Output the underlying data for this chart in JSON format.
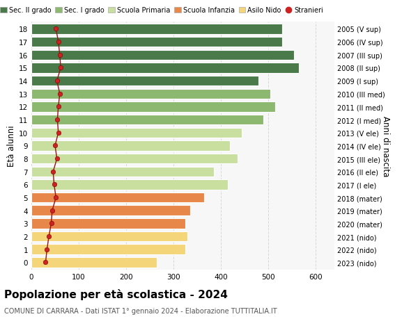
{
  "ages": [
    0,
    1,
    2,
    3,
    4,
    5,
    6,
    7,
    8,
    9,
    10,
    11,
    12,
    13,
    14,
    15,
    16,
    17,
    18
  ],
  "anni_nascita": [
    "2023 (nido)",
    "2022 (nido)",
    "2021 (nido)",
    "2020 (mater)",
    "2019 (mater)",
    "2018 (mater)",
    "2017 (I ele)",
    "2016 (II ele)",
    "2015 (III ele)",
    "2014 (IV ele)",
    "2013 (V ele)",
    "2012 (I med)",
    "2011 (II med)",
    "2010 (III med)",
    "2009 (I sup)",
    "2008 (II sup)",
    "2007 (III sup)",
    "2006 (IV sup)",
    "2005 (V sup)"
  ],
  "bar_values": [
    265,
    325,
    330,
    325,
    335,
    365,
    415,
    385,
    435,
    420,
    445,
    490,
    515,
    505,
    480,
    565,
    555,
    530,
    530
  ],
  "bar_colors": [
    "#f5d57a",
    "#f5d57a",
    "#f5d57a",
    "#e8874a",
    "#e8874a",
    "#e8874a",
    "#c8dfa0",
    "#c8dfa0",
    "#c8dfa0",
    "#c8dfa0",
    "#c8dfa0",
    "#8db870",
    "#8db870",
    "#8db870",
    "#4a7a4a",
    "#4a7a4a",
    "#4a7a4a",
    "#4a7a4a",
    "#4a7a4a"
  ],
  "stranieri_values": [
    30,
    33,
    37,
    42,
    44,
    52,
    48,
    46,
    54,
    50,
    57,
    55,
    57,
    60,
    54,
    62,
    60,
    57,
    52
  ],
  "legend_labels": [
    "Sec. II grado",
    "Sec. I grado",
    "Scuola Primaria",
    "Scuola Infanzia",
    "Asilo Nido",
    "Stranieri"
  ],
  "legend_colors": [
    "#4a7a4a",
    "#8db870",
    "#c8dfa0",
    "#e8874a",
    "#f5d57a",
    "#cc2222"
  ],
  "ylabel_left": "Età alunni",
  "ylabel_right": "Anni di nascita",
  "title": "Popolazione per età scolastica - 2024",
  "subtitle": "COMUNE DI CARRARA - Dati ISTAT 1° gennaio 2024 - Elaborazione TUTTITALIA.IT",
  "xlim": [
    0,
    640
  ],
  "xticks": [
    0,
    100,
    200,
    300,
    400,
    500,
    600
  ],
  "background_color": "#ffffff",
  "plot_bg_color": "#f7f7f7",
  "bar_height": 0.78,
  "grid_color": "#d8d8d8"
}
